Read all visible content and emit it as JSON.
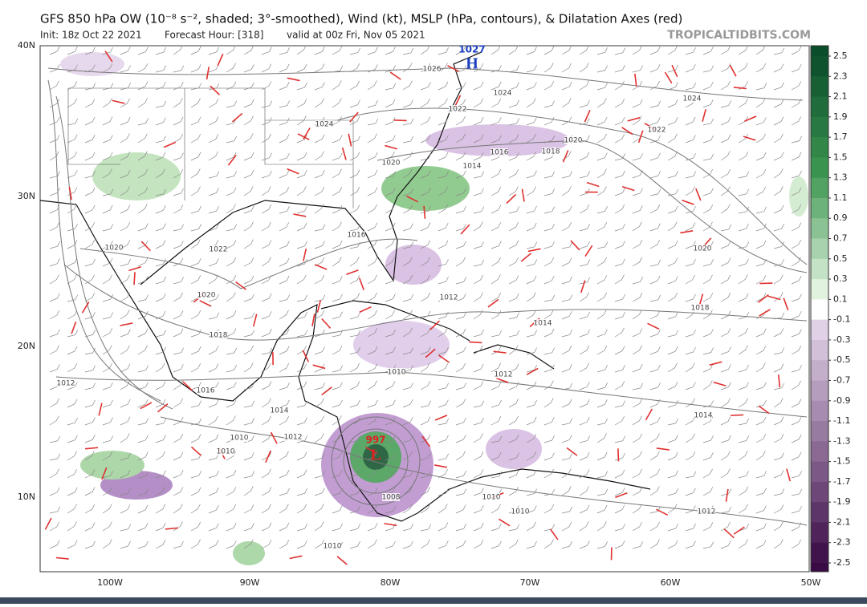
{
  "header": {
    "title": "GFS 850 hPa OW (10⁻⁸ s⁻², shaded; 3°-smoothed), Wind (kt), MSLP (hPa, contours), & Dilatation Axes (red)",
    "init": "Init: 18z Oct 22 2021",
    "forecast": "Forecast Hour: [318]",
    "valid": "valid at 00z Fri, Nov 05 2021",
    "site": "TROPICALTIDBITS.COM"
  },
  "map": {
    "lat_labels": [
      "40N",
      "30N",
      "20N",
      "10N"
    ],
    "lon_labels": [
      "100W",
      "90W",
      "80W",
      "70W",
      "60W",
      "50W"
    ],
    "pressure_labels": [
      "1026",
      "1024",
      "1022",
      "1024",
      "1020",
      "1022",
      "1024",
      "1016",
      "1018",
      "1014",
      "1020",
      "1016",
      "1022",
      "1020",
      "1020",
      "1018",
      "1020",
      "1018",
      "1012",
      "1014",
      "1012",
      "1010",
      "1012",
      "1016",
      "1014",
      "1010",
      "1012",
      "1010",
      "1008",
      "1010",
      "1010",
      "1014",
      "1012",
      "1010"
    ],
    "high": {
      "symbol": "H",
      "pressure": "1027"
    },
    "low": {
      "symbol": "L",
      "pressure": "997"
    }
  },
  "colorbar": {
    "ticks": [
      "2.5",
      "2.3",
      "2.1",
      "1.9",
      "1.7",
      "1.5",
      "1.3",
      "1.1",
      "0.9",
      "0.7",
      "0.5",
      "0.3",
      "0.1",
      "-0.1",
      "-0.3",
      "-0.5",
      "-0.7",
      "-0.9",
      "-1.1",
      "-1.3",
      "-1.5",
      "-1.7",
      "-1.9",
      "-2.1",
      "-2.3",
      "-2.5"
    ]
  }
}
